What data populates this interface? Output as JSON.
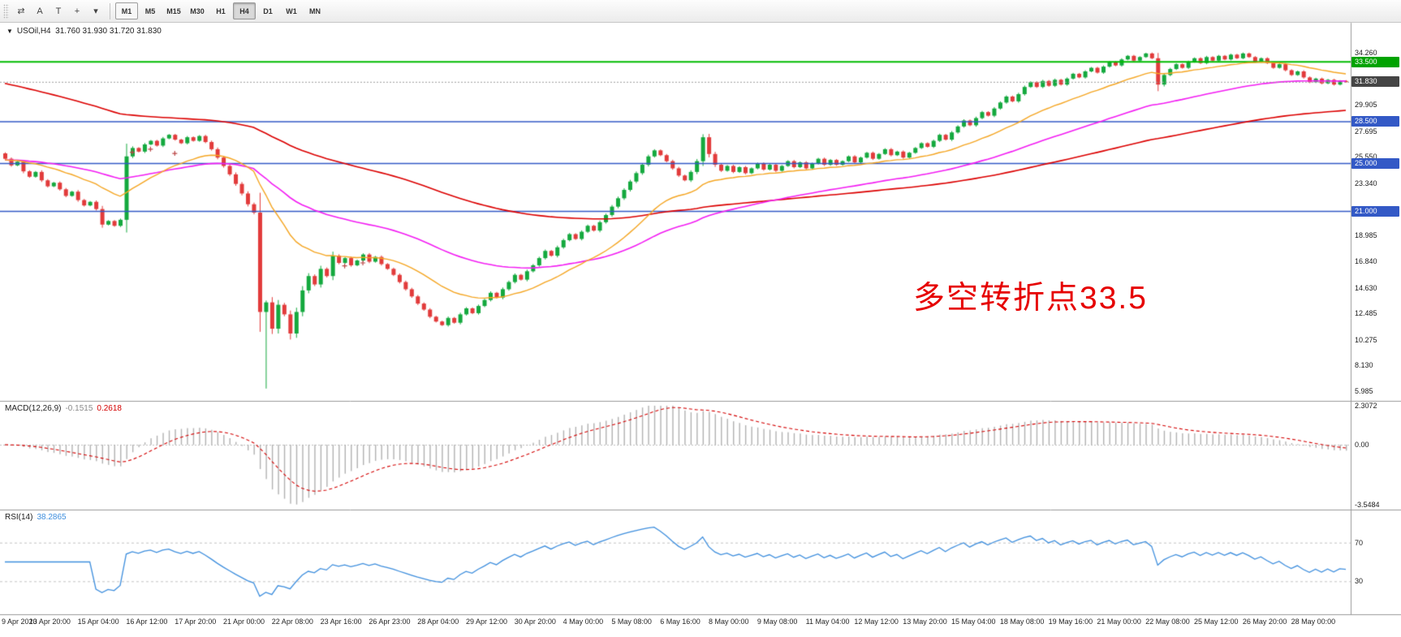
{
  "toolbar": {
    "tools": [
      {
        "glyph": "⇄",
        "name": "chart-mode-icon"
      },
      {
        "glyph": "A",
        "name": "arrow-tool-icon"
      },
      {
        "glyph": "T",
        "name": "text-tool-icon"
      },
      {
        "glyph": "+",
        "name": "crosshair-icon"
      },
      {
        "glyph": "▾",
        "name": "dropdown-arrow-icon"
      }
    ],
    "timeframes": [
      "M1",
      "M5",
      "M15",
      "M30",
      "H1",
      "H4",
      "D1",
      "W1",
      "MN"
    ],
    "active_timeframe": "H4",
    "framed_timeframe": "M1"
  },
  "symbol": {
    "label": "USOil,H4",
    "ohlc": "31.760 31.930 31.720 31.830"
  },
  "annotation": {
    "text": "多空转折点33.5",
    "color": "#e60000"
  },
  "chart_data": {
    "type": "candlestick",
    "title": "USOil H4 candlestick chart with MACD and RSI",
    "symbol": "USOil",
    "timeframe": "H4",
    "ohlc_current": {
      "open": 31.76,
      "high": 31.93,
      "low": 31.72,
      "close": 31.83
    },
    "x_labels": [
      "9 Apr 2020",
      "13 Apr 20:00",
      "15 Apr 04:00",
      "16 Apr 12:00",
      "17 Apr 20:00",
      "21 Apr 00:00",
      "22 Apr 08:00",
      "23 Apr 16:00",
      "26 Apr 23:00",
      "28 Apr 04:00",
      "29 Apr 12:00",
      "30 Apr 20:00",
      "4 May 00:00",
      "5 May 08:00",
      "6 May 16:00",
      "8 May 00:00",
      "9 May 08:00",
      "11 May 04:00",
      "12 May 12:00",
      "13 May 20:00",
      "15 May 04:00",
      "18 May 08:00",
      "19 May 16:00",
      "21 May 00:00",
      "22 May 08:00",
      "25 May 12:00",
      "26 May 20:00",
      "28 May 00:00"
    ],
    "bars_per_label": 8,
    "closes": [
      25.4,
      24.85,
      25.15,
      24.35,
      23.9,
      24.3,
      23.6,
      23.1,
      23.4,
      22.85,
      22.3,
      22.65,
      21.95,
      21.5,
      21.8,
      21.2,
      19.9,
      20.2,
      19.8,
      20.3,
      25.6,
      26.3,
      26.0,
      26.6,
      26.9,
      26.5,
      27.1,
      27.4,
      27.0,
      26.7,
      27.2,
      26.9,
      27.3,
      26.8,
      26.2,
      25.5,
      24.8,
      24.1,
      23.3,
      22.5,
      21.6,
      20.9,
      12.6,
      13.4,
      11.2,
      13.2,
      12.4,
      10.8,
      12.6,
      14.4,
      15.6,
      14.9,
      16.2,
      15.6,
      17.3,
      16.7,
      17.1,
      16.5,
      16.9,
      17.4,
      16.8,
      17.2,
      16.6,
      16.2,
      15.7,
      15.1,
      14.5,
      13.9,
      13.3,
      12.8,
      12.2,
      11.8,
      11.5,
      12.1,
      11.7,
      12.4,
      12.9,
      12.5,
      13.1,
      13.6,
      14.2,
      13.8,
      14.5,
      15.1,
      15.7,
      15.3,
      16.0,
      16.5,
      17.1,
      17.7,
      17.3,
      18.0,
      18.6,
      19.1,
      18.7,
      19.3,
      19.8,
      19.4,
      20.1,
      20.7,
      21.4,
      22.1,
      22.8,
      23.5,
      24.2,
      24.9,
      25.6,
      26.1,
      25.7,
      25.2,
      24.6,
      24.0,
      23.6,
      24.3,
      25.2,
      27.2,
      25.8,
      24.9,
      24.4,
      24.8,
      24.3,
      24.7,
      24.2,
      24.6,
      25.0,
      24.5,
      24.9,
      24.4,
      24.8,
      25.2,
      24.7,
      25.1,
      24.6,
      25.0,
      25.4,
      24.9,
      25.3,
      24.9,
      25.2,
      25.6,
      25.1,
      25.5,
      25.9,
      25.4,
      25.8,
      26.2,
      25.7,
      26.0,
      25.5,
      25.9,
      26.3,
      26.7,
      26.4,
      26.9,
      27.4,
      27.0,
      27.6,
      28.1,
      28.6,
      28.2,
      28.8,
      29.3,
      29.0,
      29.6,
      30.1,
      30.6,
      30.2,
      30.8,
      31.4,
      31.8,
      31.4,
      31.9,
      31.5,
      32.0,
      31.6,
      32.1,
      32.5,
      32.2,
      32.7,
      33.0,
      32.6,
      33.1,
      33.5,
      33.2,
      33.7,
      34.0,
      33.6,
      33.9,
      34.2,
      33.8,
      31.6,
      32.4,
      32.9,
      33.3,
      33.0,
      33.5,
      33.8,
      33.4,
      33.9,
      33.6,
      34.0,
      33.7,
      34.1,
      33.8,
      34.2,
      33.9,
      33.5,
      33.8,
      33.4,
      33.0,
      33.3,
      32.8,
      32.4,
      32.7,
      32.2,
      31.8,
      32.1,
      31.7,
      32.0,
      31.6,
      31.9,
      31.83
    ],
    "wick_overrides": {
      "43": {
        "low": 6.2
      },
      "47": {
        "low": 10.3
      },
      "115": {
        "high": 27.45
      },
      "188": {
        "high": 34.26
      },
      "190": {
        "low": 31.05
      }
    },
    "y_ticks": [
      34.26,
      29.905,
      27.695,
      25.55,
      23.34,
      18.985,
      16.84,
      14.63,
      12.485,
      10.275,
      8.13,
      5.985
    ],
    "candle_colors": {
      "up": "#14a93e",
      "down": "#e23b3b"
    },
    "h_lines": [
      {
        "price": 33.5,
        "color": "#00bc00",
        "width": 2,
        "badge": "33.500",
        "badge_color": "#00a300"
      },
      {
        "price": 28.5,
        "color": "#3359c6",
        "width": 1.4,
        "badge": "28.500",
        "badge_color": "#3359c6"
      },
      {
        "price": 25.0,
        "color": "#3359c6",
        "width": 1.4,
        "badge": "25.000",
        "badge_color": "#3359c6"
      },
      {
        "price": 21.0,
        "color": "#3359c6",
        "width": 1.4,
        "badge": "21.000",
        "badge_color": "#3359c6"
      }
    ],
    "bid": {
      "price": 31.83,
      "badge": "31.830",
      "badge_color": "#454545",
      "line_color": "#9c9c9c"
    },
    "ma": [
      {
        "period": 120,
        "color": "#dc0000",
        "seed": 31.8,
        "width": 1.6
      },
      {
        "period": 55,
        "color": "#f31df3",
        "seed": 25.3,
        "width": 1.6
      },
      {
        "period": 21,
        "color": "#f5a623",
        "seed": 25.3,
        "width": 1.4
      }
    ],
    "markers": [
      {
        "i": 21,
        "p": 25.95
      },
      {
        "i": 24,
        "p": 26.2
      },
      {
        "i": 28,
        "p": 25.85
      },
      {
        "i": 56,
        "p": 16.45
      },
      {
        "i": 59,
        "p": 16.7
      }
    ],
    "marker_color": "#bb4444",
    "macd": {
      "label": "MACD(12,26,9)",
      "value_main": "-0.1515",
      "value_signal": "0.2618",
      "fast": 12,
      "slow": 26,
      "signal": 9,
      "range": [
        -3.5484,
        2.3072
      ],
      "ticks": [
        {
          "v": 2.3072,
          "t": "2.3072"
        },
        {
          "v": 0,
          "t": "0.00"
        },
        {
          "v": -3.5484,
          "t": "-3.5484"
        }
      ],
      "hist_color": "#b2b2b2",
      "signal_color": "#d40000"
    },
    "rsi": {
      "label": "RSI(14)",
      "value": "38.2865",
      "period": 14,
      "levels": [
        70,
        30
      ],
      "ticks": [
        {
          "v": 70,
          "t": "70"
        },
        {
          "v": 30,
          "t": "30"
        }
      ],
      "color": "#3f8fde",
      "level_color": "#c3c3c3"
    }
  }
}
